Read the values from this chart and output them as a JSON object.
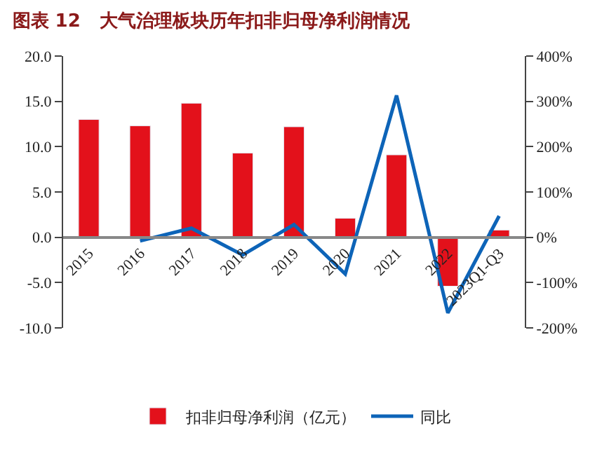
{
  "chart_data": {
    "type": "bar",
    "title": "图表 12   大气治理板块历年扣非归母净利润情况",
    "categories": [
      "2015",
      "2016",
      "2017",
      "2018",
      "2019",
      "2020",
      "2021",
      "2022",
      "2023Q1-Q3"
    ],
    "series": [
      {
        "name": "扣非归母净利润（亿元）",
        "color": "#e3111b",
        "values": [
          13.0,
          12.3,
          14.8,
          9.3,
          12.2,
          2.1,
          9.1,
          -5.4,
          0.8
        ]
      },
      {
        "name": "同比",
        "type": "line",
        "axis": "y2",
        "color": "#0d64b8",
        "values": [
          null,
          -8,
          20,
          -39,
          28,
          -81,
          313,
          -167,
          47
        ]
      }
    ],
    "ylim": [
      -10,
      20
    ],
    "yticks": [
      {
        "value": -10,
        "label": "-10.0"
      },
      {
        "value": -5,
        "label": "-5.0"
      },
      {
        "value": 0,
        "label": "0.0"
      },
      {
        "value": 5,
        "label": "5.0"
      },
      {
        "value": 10,
        "label": "10.0"
      },
      {
        "value": 15,
        "label": "15.0"
      },
      {
        "value": 20,
        "label": "20.0"
      }
    ],
    "y2lim": [
      -200,
      400
    ],
    "y2ticks": [
      {
        "value": -200,
        "label": "-200%"
      },
      {
        "value": -100,
        "label": "-100%"
      },
      {
        "value": 0,
        "label": "0%"
      },
      {
        "value": 100,
        "label": "100%"
      },
      {
        "value": 200,
        "label": "200%"
      },
      {
        "value": 300,
        "label": "300%"
      },
      {
        "value": 400,
        "label": "400%"
      }
    ],
    "legend": "bottom",
    "marker": "none"
  }
}
